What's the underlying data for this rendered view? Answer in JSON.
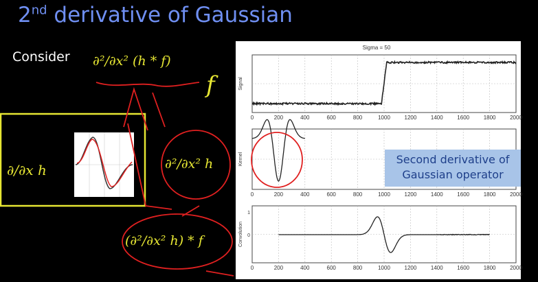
{
  "slide": {
    "title_main": "2",
    "title_sup": "nd",
    "title_rest": " derivative of Gaussian",
    "consider": "Consider",
    "expr_top": "∂²/∂x² (h * f)",
    "f_label": "f",
    "first_deriv": "∂/∂x h",
    "second_deriv": "∂²/∂x² h",
    "conv_expr": "(∂²/∂x² h) * f",
    "callout_line1": "Second derivative of",
    "callout_line2": "Gaussian operator"
  },
  "figure": {
    "title": "Sigma = 50",
    "xticks": [
      "0",
      "200",
      "400",
      "600",
      "800",
      "1000",
      "1200",
      "1400",
      "1600",
      "1800",
      "2000"
    ],
    "panels": [
      {
        "ylabel": "Signal",
        "yticks": []
      },
      {
        "ylabel": "Kernel",
        "yticks": []
      },
      {
        "ylabel": "Convolution",
        "yticks": [
          "1",
          "0"
        ]
      }
    ]
  },
  "colors": {
    "title": "#6f8ff2",
    "math": "#e6e633",
    "annotation": "#e02020",
    "callout_bg": "#a8c4e8",
    "callout_text": "#1e3f8a"
  }
}
